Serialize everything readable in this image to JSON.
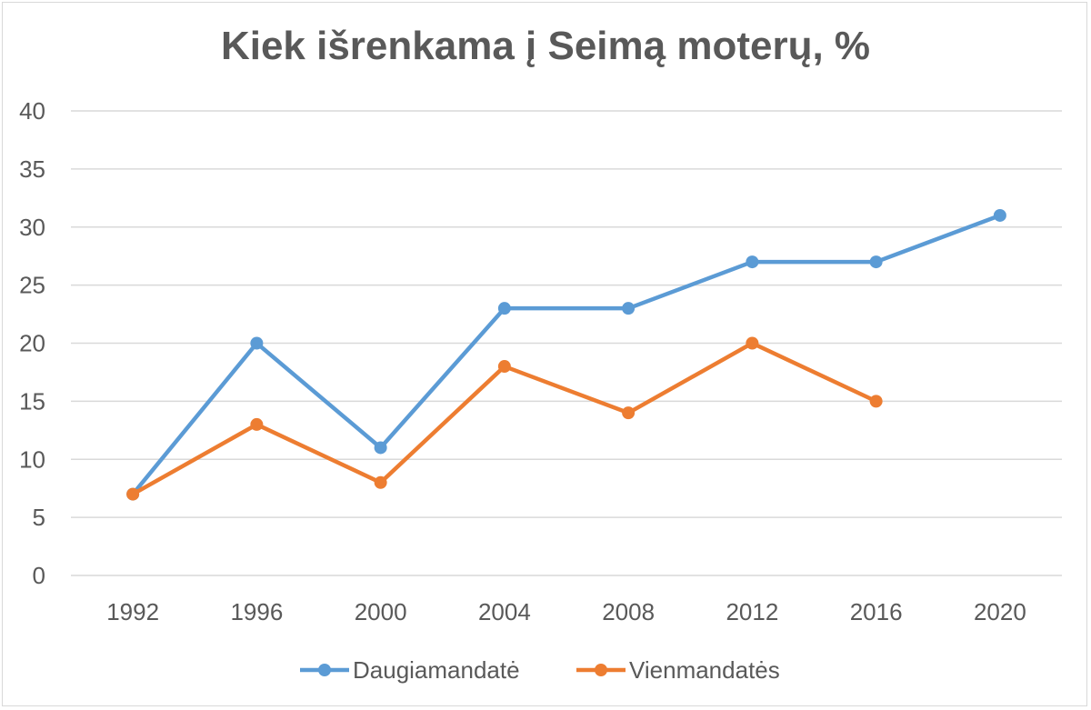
{
  "chart_data": {
    "type": "line",
    "title": "Kiek išrenkama į Seimą moterų, %",
    "xlabel": "",
    "ylabel": "",
    "categories": [
      "1992",
      "1996",
      "2000",
      "2004",
      "2008",
      "2012",
      "2016",
      "2020"
    ],
    "ylim": [
      0,
      40
    ],
    "yticks": [
      0,
      5,
      10,
      15,
      20,
      25,
      30,
      35,
      40
    ],
    "grid": true,
    "legend_position": "bottom",
    "series": [
      {
        "name": "Daugiamandatė",
        "color": "#5b9bd5",
        "values": [
          7,
          20,
          11,
          23,
          23,
          27,
          27,
          31
        ]
      },
      {
        "name": "Vienmandatės",
        "color": "#ed7d31",
        "values": [
          7,
          13,
          8,
          18,
          14,
          20,
          15,
          null
        ]
      }
    ]
  }
}
